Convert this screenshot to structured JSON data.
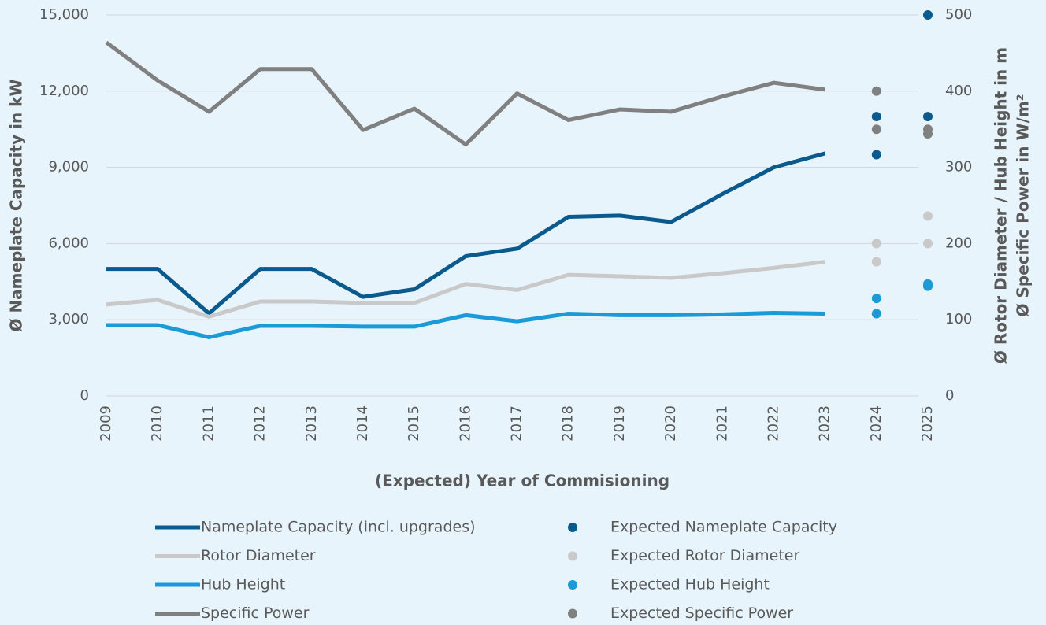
{
  "chart_data": {
    "type": "line",
    "xlabel": "(Expected) Year of Commisioning",
    "ylabel": "Ø Nameplate Capacity in kW",
    "y2label": [
      "Ø Rotor Diameter / Hub Height in m",
      "Ø Specific Power in W/m²"
    ],
    "categories": [
      "2009",
      "2010",
      "2011",
      "2012",
      "2013",
      "2014",
      "2015",
      "2016",
      "2017",
      "2018",
      "2019",
      "2020",
      "2021",
      "2022",
      "2023",
      "2024",
      "2025"
    ],
    "ylim": [
      0,
      15000
    ],
    "yticks": [
      0,
      {
        "value": 3000,
        "label": "3,000"
      },
      {
        "value": 6000,
        "label": "6,000"
      },
      {
        "value": 9000,
        "label": "9,000"
      },
      {
        "value": 12000,
        "label": "12,000"
      },
      {
        "value": 15000,
        "label": "15,000"
      }
    ],
    "y2lim": [
      0,
      500
    ],
    "y2ticks": [
      0,
      100,
      200,
      300,
      400,
      500
    ],
    "grid": true,
    "series": [
      {
        "name": "Nameplate Capacity (incl. upgrades)",
        "color": "#0b5a8e",
        "values": [
          5000,
          5000,
          3250,
          5000,
          5000,
          3900,
          4200,
          5500,
          5800,
          7050,
          7100,
          6850,
          7950,
          9000,
          9550,
          null,
          null
        ]
      },
      {
        "name": "Rotor Diameter",
        "color": "#c9c9c9",
        "axis": "y2",
        "values": [
          120,
          126,
          104,
          124,
          124,
          122,
          122,
          147,
          139,
          159,
          157,
          155,
          161,
          168,
          176,
          null,
          null
        ]
      },
      {
        "name": "Hub Height",
        "color": "#1a9ad6",
        "axis": "y2",
        "values": [
          93,
          93,
          77,
          92,
          92,
          91,
          91,
          106,
          98,
          108,
          106,
          106,
          107,
          109,
          108,
          null,
          null
        ]
      },
      {
        "name": "Specific Power",
        "color": "#808080",
        "axis": "y2",
        "values": [
          464,
          414,
          373,
          429,
          429,
          349,
          377,
          330,
          397,
          362,
          376,
          373,
          393,
          411,
          402,
          null,
          null
        ]
      },
      {
        "name": "Expected Nameplate Capacity",
        "color": "#0b5a8e",
        "x": [
          "2024",
          "2024",
          "2025",
          "2025"
        ],
        "values": [
          11000,
          9500,
          15000,
          11000
        ]
      },
      {
        "name": "Expected Rotor Diameter",
        "color": "#c9c9c9",
        "axis": "y2",
        "x": [
          "2024",
          "2024",
          "2025",
          "2025"
        ],
        "values": [
          200,
          176,
          200,
          236
        ]
      },
      {
        "name": "Expected Hub Height",
        "color": "#1a9ad6",
        "axis": "y2",
        "x": [
          "2024",
          "2024",
          "2025",
          "2025"
        ],
        "values": [
          128,
          108,
          147,
          144
        ]
      },
      {
        "name": "Expected Specific Power",
        "color": "#808080",
        "axis": "y2",
        "x": [
          "2024",
          "2024",
          "2025",
          "2025"
        ],
        "values": [
          400,
          350,
          350,
          344
        ]
      }
    ]
  }
}
